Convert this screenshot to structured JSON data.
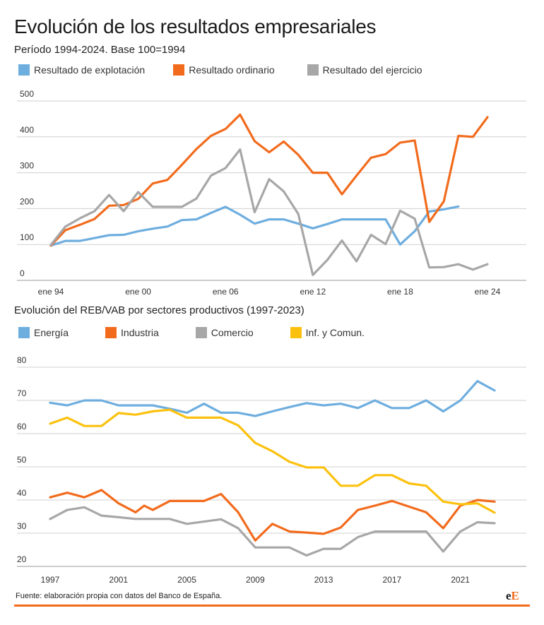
{
  "title": "Evolución de los resultados empresariales",
  "chart1_subtitle": "Período 1994-2024. Base 100=1994",
  "chart2_subtitle": "Evolución del REB/VAB por sectores productivos (1997-2023)",
  "source": "Fuente: elaboración propia con datos del Banco de España.",
  "logo": {
    "e": "e",
    "E": "E"
  },
  "colors": {
    "accent": "#f26b1d",
    "grid": "#d0d0d0"
  },
  "chart_data": [
    {
      "type": "line",
      "title": "Evolución de los resultados empresariales",
      "subtitle": "Período 1994-2024. Base 100=1994",
      "xlabel": "",
      "ylabel": "",
      "ylim": [
        0,
        500
      ],
      "yticks": [
        0,
        100,
        200,
        300,
        400,
        500
      ],
      "xlim": [
        1994,
        2024.5
      ],
      "xticks": [
        {
          "value": 1994,
          "label": "ene 94"
        },
        {
          "value": 2000,
          "label": "ene 00"
        },
        {
          "value": 2006,
          "label": "ene 06"
        },
        {
          "value": 2012,
          "label": "ene 12"
        },
        {
          "value": 2018,
          "label": "ene 18"
        },
        {
          "value": 2024,
          "label": "ene 24"
        }
      ],
      "grid": true,
      "legend_position": "top",
      "series": [
        {
          "name": "Resultado de explotación",
          "color": "#6eaedf",
          "points": [
            [
              1994,
              97
            ],
            [
              1995,
              110
            ],
            [
              1996,
              110
            ],
            [
              1997,
              118
            ],
            [
              1998,
              126
            ],
            [
              1999,
              127
            ],
            [
              2000,
              137
            ],
            [
              2001,
              144
            ],
            [
              2002,
              150
            ],
            [
              2003,
              168
            ],
            [
              2004,
              170
            ],
            [
              2005,
              188
            ],
            [
              2006,
              205
            ],
            [
              2007,
              183
            ],
            [
              2008,
              158
            ],
            [
              2009,
              170
            ],
            [
              2010,
              170
            ],
            [
              2011,
              158
            ],
            [
              2012,
              145
            ],
            [
              2013,
              157
            ],
            [
              2014,
              170
            ],
            [
              2015,
              170
            ],
            [
              2016,
              170
            ],
            [
              2017,
              170
            ],
            [
              2018,
              100
            ],
            [
              2019,
              137
            ],
            [
              2020,
              192
            ],
            [
              2021,
              198
            ],
            [
              2022,
              206
            ]
          ]
        },
        {
          "name": "Resultado ordinario",
          "color": "#f26b1d",
          "points": [
            [
              1994,
              97
            ],
            [
              1995,
              140
            ],
            [
              1996,
              155
            ],
            [
              1997,
              171
            ],
            [
              1998,
              208
            ],
            [
              1999,
              210
            ],
            [
              2000,
              227
            ],
            [
              2001,
              270
            ],
            [
              2002,
              280
            ],
            [
              2003,
              322
            ],
            [
              2004,
              366
            ],
            [
              2005,
              403
            ],
            [
              2006,
              422
            ],
            [
              2007,
              462
            ],
            [
              2008,
              388
            ],
            [
              2009,
              357
            ],
            [
              2010,
              387
            ],
            [
              2011,
              350
            ],
            [
              2012,
              300
            ],
            [
              2013,
              300
            ],
            [
              2014,
              240
            ],
            [
              2015,
              292
            ],
            [
              2016,
              342
            ],
            [
              2017,
              352
            ],
            [
              2018,
              384
            ],
            [
              2019,
              390
            ],
            [
              2020,
              163
            ],
            [
              2021,
              220
            ],
            [
              2022,
              403
            ],
            [
              2023,
              400
            ],
            [
              2024,
              455
            ]
          ]
        },
        {
          "name": "Resultado del ejercicio",
          "color": "#a7a7a7",
          "points": [
            [
              1994,
              99
            ],
            [
              1995,
              150
            ],
            [
              1996,
              173
            ],
            [
              1997,
              193
            ],
            [
              1998,
              238
            ],
            [
              1999,
              193
            ],
            [
              2000,
              246
            ],
            [
              2001,
              205
            ],
            [
              2002,
              205
            ],
            [
              2003,
              205
            ],
            [
              2004,
              228
            ],
            [
              2005,
              292
            ],
            [
              2006,
              313
            ],
            [
              2007,
              365
            ],
            [
              2008,
              190
            ],
            [
              2009,
              282
            ],
            [
              2010,
              248
            ],
            [
              2011,
              185
            ],
            [
              2012,
              15
            ],
            [
              2013,
              57
            ],
            [
              2014,
              111
            ],
            [
              2015,
              53
            ],
            [
              2016,
              127
            ],
            [
              2017,
              101
            ],
            [
              2018,
              194
            ],
            [
              2019,
              172
            ],
            [
              2020,
              36
            ],
            [
              2021,
              37
            ],
            [
              2022,
              45
            ],
            [
              2023,
              30
            ],
            [
              2024,
              45
            ]
          ]
        }
      ]
    },
    {
      "type": "line",
      "title": "Evolución del REB/VAB por sectores productivos (1997-2023)",
      "xlabel": "",
      "ylabel": "",
      "ylim": [
        20,
        80
      ],
      "yticks": [
        20,
        30,
        40,
        50,
        60,
        70,
        80
      ],
      "xlim": [
        1997,
        2023
      ],
      "xticks": [
        1997,
        2001,
        2005,
        2009,
        2013,
        2017,
        2021
      ],
      "grid": true,
      "legend_position": "top",
      "series": [
        {
          "name": "Energía",
          "color": "#6eaedf",
          "points": [
            [
              1997,
              69.3
            ],
            [
              1998,
              68.5
            ],
            [
              1999,
              70
            ],
            [
              2000,
              70
            ],
            [
              2001,
              68.5
            ],
            [
              2002,
              68.5
            ],
            [
              2003,
              68.5
            ],
            [
              2004,
              67.5
            ],
            [
              2005,
              66.3
            ],
            [
              2006,
              69
            ],
            [
              2007,
              66.3
            ],
            [
              2008,
              66.3
            ],
            [
              2009,
              65.3
            ],
            [
              2010,
              66.7
            ],
            [
              2011,
              68
            ],
            [
              2012,
              69.2
            ],
            [
              2013,
              68.5
            ],
            [
              2014,
              69
            ],
            [
              2015,
              67.7
            ],
            [
              2016,
              70
            ],
            [
              2017,
              67.7
            ],
            [
              2018,
              67.7
            ],
            [
              2019,
              70
            ],
            [
              2020,
              66.7
            ],
            [
              2021,
              70
            ],
            [
              2022,
              75.8
            ],
            [
              2023,
              73
            ]
          ]
        },
        {
          "name": "Industria",
          "color": "#f26b1d",
          "points": [
            [
              1997,
              40.8
            ],
            [
              1998,
              42.2
            ],
            [
              1999,
              40.8
            ],
            [
              2000,
              43
            ],
            [
              2001,
              39
            ],
            [
              2002,
              36.3
            ],
            [
              2002.5,
              38.3
            ],
            [
              2003,
              37
            ],
            [
              2004,
              39.7
            ],
            [
              2005,
              39.7
            ],
            [
              2006,
              39.7
            ],
            [
              2007,
              41.8
            ],
            [
              2008,
              36.3
            ],
            [
              2009,
              27.8
            ],
            [
              2010,
              32.8
            ],
            [
              2011,
              30.5
            ],
            [
              2012,
              30.2
            ],
            [
              2013,
              29.8
            ],
            [
              2014,
              31.7
            ],
            [
              2015,
              37
            ],
            [
              2016,
              38.3
            ],
            [
              2017,
              39.7
            ],
            [
              2018,
              38
            ],
            [
              2019,
              36.3
            ],
            [
              2020,
              31.5
            ],
            [
              2021,
              38.3
            ],
            [
              2022,
              40
            ],
            [
              2023,
              39.5
            ]
          ]
        },
        {
          "name": "Comercio",
          "color": "#a7a7a7",
          "points": [
            [
              1997,
              34.3
            ],
            [
              1998,
              37
            ],
            [
              1999,
              37.8
            ],
            [
              2000,
              35.3
            ],
            [
              2001,
              34.8
            ],
            [
              2002,
              34.3
            ],
            [
              2003,
              34.3
            ],
            [
              2004,
              34.3
            ],
            [
              2005,
              32.8
            ],
            [
              2006,
              33.5
            ],
            [
              2007,
              34.2
            ],
            [
              2008,
              31.5
            ],
            [
              2009,
              25.7
            ],
            [
              2010,
              25.7
            ],
            [
              2011,
              25.7
            ],
            [
              2012,
              23.3
            ],
            [
              2013,
              25.3
            ],
            [
              2014,
              25.3
            ],
            [
              2015,
              28.8
            ],
            [
              2016,
              30.5
            ],
            [
              2017,
              30.5
            ],
            [
              2018,
              30.5
            ],
            [
              2019,
              30.5
            ],
            [
              2020,
              24.5
            ],
            [
              2021,
              30.5
            ],
            [
              2022,
              33.3
            ],
            [
              2023,
              33
            ]
          ]
        },
        {
          "name": "Inf. y Comun.",
          "color": "#fcc10e",
          "points": [
            [
              1997,
              63
            ],
            [
              1998,
              64.8
            ],
            [
              1999,
              62.3
            ],
            [
              2000,
              62.3
            ],
            [
              2001,
              66.2
            ],
            [
              2002,
              65.7
            ],
            [
              2003,
              66.7
            ],
            [
              2004,
              67.2
            ],
            [
              2005,
              64.8
            ],
            [
              2006,
              64.8
            ],
            [
              2007,
              64.8
            ],
            [
              2008,
              62.5
            ],
            [
              2009,
              57.2
            ],
            [
              2010,
              54.7
            ],
            [
              2011,
              51.5
            ],
            [
              2012,
              49.8
            ],
            [
              2013,
              49.8
            ],
            [
              2014,
              44.3
            ],
            [
              2015,
              44.3
            ],
            [
              2016,
              47.5
            ],
            [
              2017,
              47.5
            ],
            [
              2018,
              45
            ],
            [
              2019,
              44.3
            ],
            [
              2020,
              39.5
            ],
            [
              2021,
              38.7
            ],
            [
              2022,
              39
            ],
            [
              2023,
              36.2
            ]
          ]
        }
      ]
    }
  ]
}
